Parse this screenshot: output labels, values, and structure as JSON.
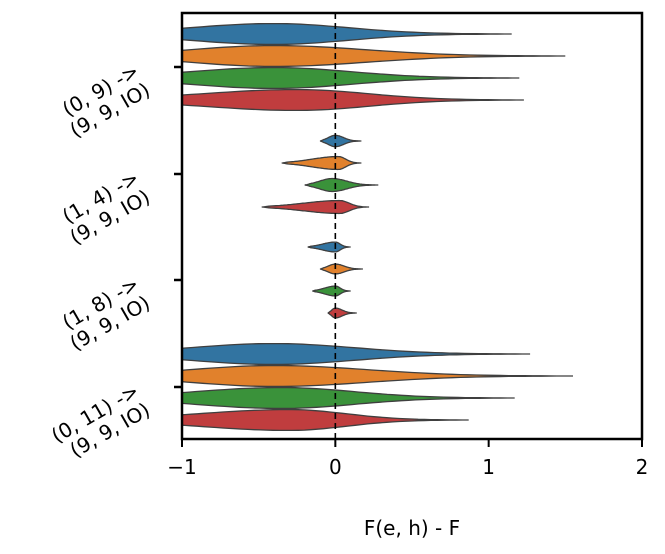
{
  "chart_data": {
    "type": "violin",
    "orientation": "horizontal",
    "xlabel": "F(e, h) - F",
    "ylabel": "",
    "xlim": [
      -1,
      2
    ],
    "xticks": [
      {
        "value": -1,
        "label": "−1"
      },
      {
        "value": 0,
        "label": "0"
      },
      {
        "value": 1,
        "label": "1"
      },
      {
        "value": 2,
        "label": "2"
      }
    ],
    "reference_line": {
      "x": 0,
      "style": "dashed"
    },
    "grid": false,
    "legend": "none",
    "categories": [
      {
        "lines": [
          "(0, 9) ->",
          "(9, 9, IO)"
        ]
      },
      {
        "lines": [
          "(1, 4) ->",
          "(9, 9, IO)"
        ]
      },
      {
        "lines": [
          "(1, 8) ->",
          "(9, 9, IO)"
        ]
      },
      {
        "lines": [
          "(0, 11) ->",
          "(9, 9, IO)"
        ]
      }
    ],
    "series_colors": [
      "#3274a1",
      "#e1812c",
      "#3a923a",
      "#c03d3e"
    ],
    "violins": [
      [
        {
          "min": -1.6,
          "max": 1.15,
          "mode": -0.4,
          "halfwidth": 0.55
        },
        {
          "min": -1.6,
          "max": 1.5,
          "mode": -0.4,
          "halfwidth": 0.55
        },
        {
          "min": -1.6,
          "max": 1.2,
          "mode": -0.4,
          "halfwidth": 0.55
        },
        {
          "min": -1.6,
          "max": 1.23,
          "mode": -0.25,
          "halfwidth": 0.55
        }
      ],
      [
        {
          "min": -0.1,
          "max": 0.17,
          "mode": 0.0,
          "halfwidth": 0.3
        },
        {
          "min": -0.35,
          "max": 0.17,
          "mode": 0.02,
          "halfwidth": 0.34
        },
        {
          "min": -0.2,
          "max": 0.28,
          "mode": -0.02,
          "halfwidth": 0.34
        },
        {
          "min": -0.48,
          "max": 0.22,
          "mode": 0.03,
          "halfwidth": 0.34
        }
      ],
      [
        {
          "min": -0.18,
          "max": 0.1,
          "mode": 0.0,
          "halfwidth": 0.26
        },
        {
          "min": -0.1,
          "max": 0.18,
          "mode": 0.0,
          "halfwidth": 0.26
        },
        {
          "min": -0.15,
          "max": 0.1,
          "mode": 0.0,
          "halfwidth": 0.26
        },
        {
          "min": -0.05,
          "max": 0.14,
          "mode": 0.0,
          "halfwidth": 0.26
        }
      ],
      [
        {
          "min": -1.6,
          "max": 1.27,
          "mode": -0.4,
          "halfwidth": 0.55
        },
        {
          "min": -1.6,
          "max": 1.55,
          "mode": -0.4,
          "halfwidth": 0.55
        },
        {
          "min": -1.6,
          "max": 1.17,
          "mode": -0.35,
          "halfwidth": 0.55
        },
        {
          "min": -1.6,
          "max": 0.87,
          "mode": -0.3,
          "halfwidth": 0.55
        }
      ]
    ]
  }
}
